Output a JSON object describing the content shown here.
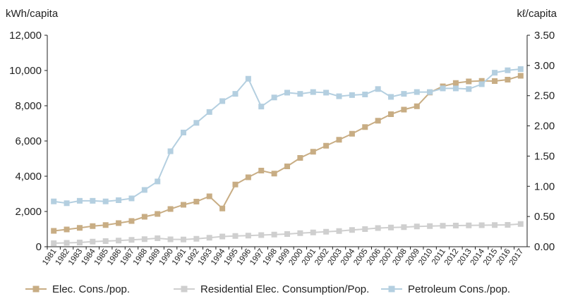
{
  "chart_data": {
    "type": "line",
    "title": "",
    "ylabel_left": "kWh/capita",
    "ylabel_right": "kℓ/capita",
    "ylim_left": [
      0,
      12000
    ],
    "ylim_right": [
      0,
      3.5
    ],
    "yticks_left": [
      "0",
      "2,000",
      "4,000",
      "6,000",
      "8,000",
      "10,000",
      "12,000"
    ],
    "yticks_right": [
      "0.00",
      "0.50",
      "1.00",
      "1.50",
      "2.00",
      "2.50",
      "3.00",
      "3.50"
    ],
    "grid": false,
    "legend_position": "bottom",
    "categories": [
      "1981",
      "1982",
      "1983",
      "1984",
      "1985",
      "1986",
      "1987",
      "1988",
      "1989",
      "1990",
      "1991",
      "1992",
      "1993",
      "1994",
      "1995",
      "1996",
      "1997",
      "1998",
      "1999",
      "2000",
      "2001",
      "2002",
      "2003",
      "2004",
      "2005",
      "2006",
      "2007",
      "2008",
      "2009",
      "2010",
      "2011",
      "2012",
      "2013",
      "2014",
      "2015",
      "2016",
      "2017"
    ],
    "series": [
      {
        "name": "Elec. Cons./pop.",
        "axis": "left",
        "color": "#c8ad84",
        "values": [
          900,
          980,
          1070,
          1170,
          1230,
          1340,
          1460,
          1700,
          1860,
          2140,
          2380,
          2560,
          2860,
          2170,
          3530,
          3940,
          4320,
          4150,
          4560,
          5040,
          5390,
          5730,
          6070,
          6410,
          6790,
          7150,
          7520,
          7780,
          7970,
          8750,
          9100,
          9290,
          9380,
          9410,
          9400,
          9480,
          9700
        ]
      },
      {
        "name": "Residential Elec. Consumption/Pop.",
        "axis": "left",
        "color": "#cfcfcf",
        "values": [
          200,
          220,
          240,
          290,
          320,
          350,
          390,
          430,
          480,
          420,
          410,
          450,
          510,
          580,
          610,
          630,
          660,
          690,
          720,
          770,
          810,
          850,
          890,
          950,
          1000,
          1060,
          1090,
          1110,
          1150,
          1170,
          1190,
          1200,
          1210,
          1220,
          1230,
          1240,
          1290
        ]
      },
      {
        "name": "Petroleum Cons./pop.",
        "axis": "right",
        "color": "#b4cfe0",
        "values": [
          0.75,
          0.72,
          0.76,
          0.76,
          0.75,
          0.77,
          0.8,
          0.94,
          1.08,
          1.58,
          1.89,
          2.05,
          2.23,
          2.41,
          2.53,
          2.78,
          2.32,
          2.47,
          2.55,
          2.53,
          2.56,
          2.55,
          2.49,
          2.51,
          2.52,
          2.61,
          2.48,
          2.53,
          2.56,
          2.56,
          2.62,
          2.62,
          2.61,
          2.69,
          2.88,
          2.92,
          2.94
        ]
      }
    ]
  }
}
